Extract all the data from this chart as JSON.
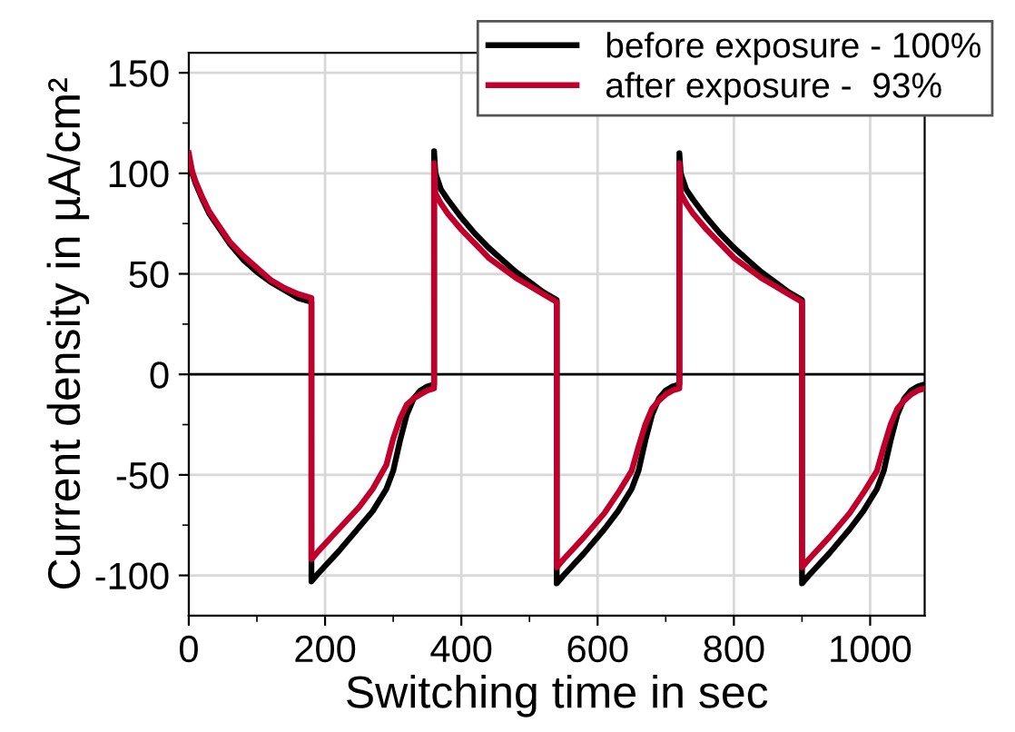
{
  "chart_data": {
    "type": "line",
    "xlabel": "Switching time in sec",
    "ylabel": "Current density in µA/cm²",
    "xlim": [
      0,
      1080
    ],
    "xticks": [
      0,
      200,
      400,
      600,
      800,
      1000
    ],
    "ylim": [
      -120,
      160
    ],
    "yticks": [
      -100,
      -50,
      0,
      50,
      100,
      150
    ],
    "grid": true,
    "legend": "top right",
    "marker": "none",
    "line_style": "solid",
    "ref_lines": [
      {
        "axis": "y",
        "value": 0,
        "color": "#000000"
      }
    ],
    "series": [
      {
        "name": "before exposure - 100%",
        "color": "#000000",
        "x": [
          0,
          5,
          10,
          20,
          30,
          40,
          60,
          80,
          100,
          120,
          140,
          160,
          180,
          180,
          190,
          220,
          250,
          270,
          290,
          300,
          310,
          320,
          330,
          340,
          350,
          360,
          360,
          362,
          370,
          380,
          400,
          420,
          440,
          460,
          480,
          500,
          520,
          540,
          540,
          550,
          580,
          610,
          630,
          650,
          660,
          670,
          680,
          690,
          700,
          710,
          720,
          720,
          722,
          730,
          740,
          760,
          780,
          800,
          820,
          840,
          860,
          880,
          900,
          900,
          910,
          940,
          970,
          990,
          1010,
          1020,
          1030,
          1040,
          1050,
          1060,
          1070,
          1080
        ],
        "values": [
          108,
          100,
          95,
          87,
          80,
          75,
          65,
          57,
          51,
          46,
          42,
          38,
          36,
          -103,
          -99,
          -88,
          -76,
          -68,
          -57,
          -48,
          -33,
          -20,
          -12,
          -8,
          -6,
          -5,
          111,
          100,
          92,
          87,
          78,
          70,
          63,
          57,
          51,
          46,
          41,
          37,
          -104,
          -100,
          -89,
          -77,
          -68,
          -57,
          -48,
          -33,
          -20,
          -12,
          -8,
          -6,
          -5,
          110,
          100,
          92,
          87,
          78,
          70,
          63,
          57,
          51,
          46,
          41,
          37,
          -104,
          -100,
          -89,
          -77,
          -68,
          -57,
          -48,
          -33,
          -20,
          -12,
          -8,
          -6,
          -5
        ]
      },
      {
        "name": "after exposure -  93%",
        "color": "#c0002a",
        "x": [
          0,
          5,
          10,
          20,
          30,
          40,
          60,
          80,
          100,
          120,
          140,
          160,
          180,
          180,
          190,
          220,
          250,
          270,
          290,
          300,
          310,
          320,
          330,
          340,
          350,
          360,
          360,
          362,
          370,
          380,
          400,
          420,
          440,
          460,
          480,
          500,
          520,
          540,
          540,
          550,
          580,
          610,
          630,
          650,
          660,
          670,
          680,
          690,
          700,
          710,
          720,
          720,
          722,
          730,
          740,
          760,
          780,
          800,
          820,
          840,
          860,
          880,
          900,
          900,
          910,
          940,
          970,
          990,
          1010,
          1020,
          1030,
          1040,
          1050,
          1060,
          1070,
          1080
        ],
        "values": [
          110,
          101,
          96,
          88,
          81,
          76,
          66,
          59,
          53,
          47,
          43,
          40,
          38,
          -92,
          -88,
          -77,
          -66,
          -57,
          -45,
          -32,
          -22,
          -15,
          -12,
          -10,
          -8,
          -7,
          105,
          90,
          85,
          80,
          72,
          65,
          58,
          53,
          48,
          44,
          40,
          36,
          -96,
          -92,
          -81,
          -69,
          -59,
          -48,
          -36,
          -25,
          -17,
          -13,
          -10,
          -8,
          -7,
          105,
          90,
          85,
          80,
          72,
          65,
          58,
          53,
          48,
          44,
          40,
          36,
          -96,
          -92,
          -81,
          -69,
          -59,
          -48,
          -36,
          -25,
          -17,
          -13,
          -10,
          -8,
          -7
        ]
      }
    ]
  }
}
